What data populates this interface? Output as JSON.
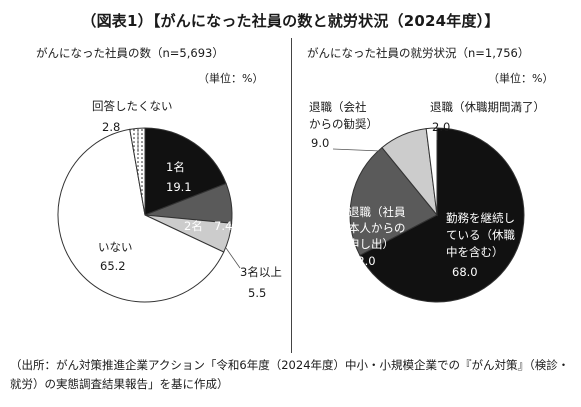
{
  "figure_title": "（図表1）【がんになった社員の数と就労状況（2024年度）】",
  "unit_label": "（単位：%）",
  "source": "（出所：がん対策推進企業アクション「令和6年度（2024年度）中小・小規模企業での『がん対策』（検診・就労）の実態調査結果報告」を基に作成）",
  "colors": {
    "black": "#111111",
    "dark_gray": "#5a5a5a",
    "light_gray": "#cccccc",
    "white": "#ffffff",
    "dotted": "#ffffff",
    "stroke": "#333333"
  },
  "chart_data": [
    {
      "type": "pie",
      "title": "がんになった社員の数（n=5,693）",
      "unit": "%",
      "slices": [
        {
          "label_lines": [
            "1名"
          ],
          "value": 19.1,
          "value_text": "19.1",
          "fill": "black"
        },
        {
          "label_lines": [
            "2名"
          ],
          "value": 7.4,
          "value_text": "7.4",
          "fill": "dark_gray"
        },
        {
          "label_lines": [
            "3名以上"
          ],
          "value": 5.5,
          "value_text": "5.5",
          "fill": "light_gray"
        },
        {
          "label_lines": [
            "いない"
          ],
          "value": 65.2,
          "value_text": "65.2",
          "fill": "white"
        },
        {
          "label_lines": [
            "回答したくない"
          ],
          "value": 2.8,
          "value_text": "2.8",
          "fill": "dotted"
        }
      ]
    },
    {
      "type": "pie",
      "title": "がんになった社員の就労状況（n=1,756）",
      "unit": "%",
      "slices": [
        {
          "label_lines": [
            "勤務を継続し",
            "ている（休職",
            "中を含む）"
          ],
          "value": 68.0,
          "value_text": "68.0",
          "fill": "black"
        },
        {
          "label_lines": [
            "退職（社員",
            "本人からの",
            "申し出）"
          ],
          "value": 22.0,
          "value_text": "22.0",
          "fill": "dark_gray"
        },
        {
          "label_lines": [
            "退職（会社",
            "からの勧奨）"
          ],
          "value": 9.0,
          "value_text": "9.0",
          "fill": "light_gray"
        },
        {
          "label_lines": [
            "退職（休職期間満了）"
          ],
          "value": 2.0,
          "value_text": "2.0",
          "fill": "white"
        }
      ]
    }
  ]
}
